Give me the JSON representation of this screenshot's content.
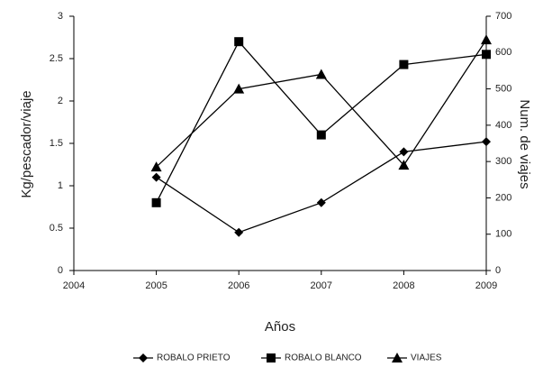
{
  "chart_data": {
    "type": "line",
    "x_label": "Años",
    "y_label": "Kg/pescador/viaje",
    "y2_label": "Num. de viajes",
    "x": [
      2005,
      2006,
      2007,
      2008,
      2009
    ],
    "xlim": [
      2004,
      2009
    ],
    "xticks": [
      2004,
      2005,
      2006,
      2007,
      2008,
      2009
    ],
    "ylim": [
      0,
      3
    ],
    "yticks": [
      0,
      0.5,
      1,
      1.5,
      2,
      2.5,
      3
    ],
    "y2lim": [
      0,
      700
    ],
    "y2ticks": [
      0,
      100,
      200,
      300,
      400,
      500,
      600,
      700
    ],
    "legend": "bottom",
    "series": [
      {
        "name": "ROBALO PRIETO",
        "color": "#000000",
        "marker": "diamond",
        "values": [
          1.1,
          0.45,
          0.8,
          1.4,
          1.52
        ]
      },
      {
        "name": "ROBALO BLANCO",
        "color": "#000000",
        "marker": "square",
        "values": [
          0.8,
          2.7,
          1.6,
          2.43,
          2.55
        ]
      },
      {
        "name": "VIAJES",
        "color": "#000000",
        "marker": "triangle",
        "axis": "y2",
        "values": [
          285,
          500,
          540,
          290,
          635
        ]
      }
    ]
  }
}
